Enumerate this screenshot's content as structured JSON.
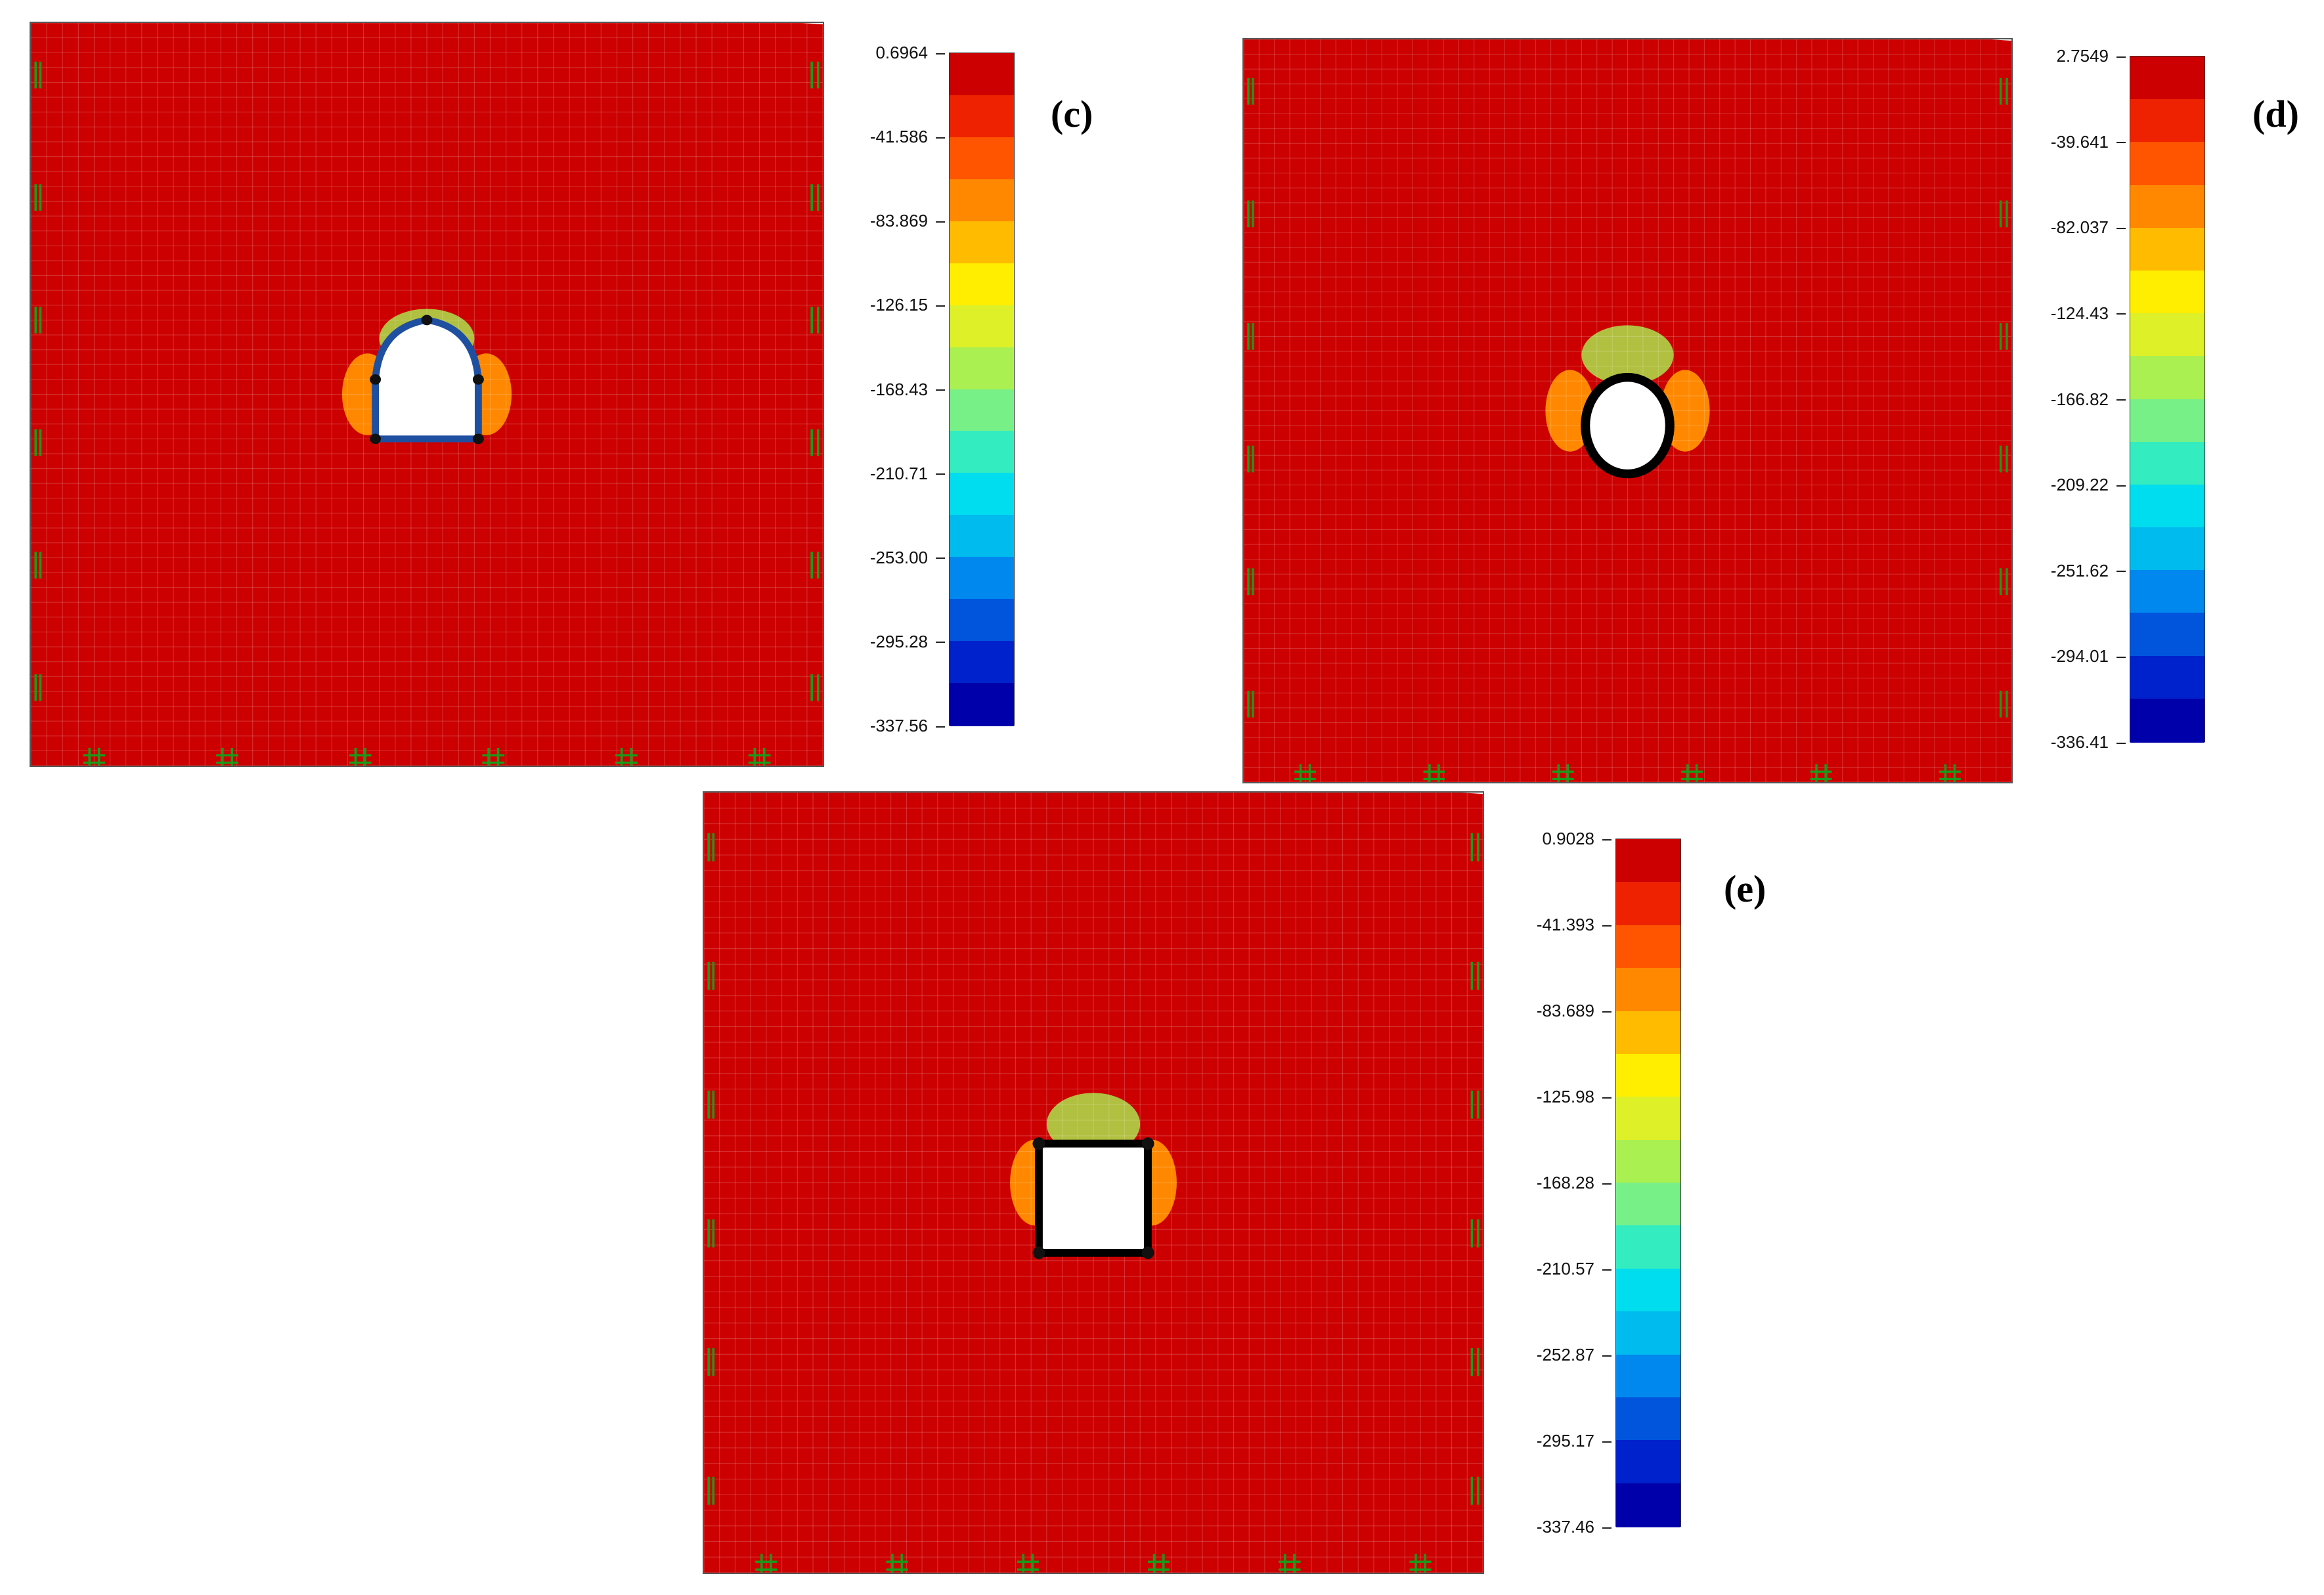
{
  "palette": [
    "#cc0000",
    "#ee2200",
    "#ff5500",
    "#ff8800",
    "#ffbb00",
    "#ffee00",
    "#ddf028",
    "#aaf050",
    "#77f088",
    "#33ecc0",
    "#00ddee",
    "#00bbee",
    "#0088ee",
    "#0055dd",
    "#0022cc",
    "#0000aa"
  ],
  "panels": [
    {
      "id": "c",
      "label": "(c)",
      "opening": "horseshoe",
      "ticks": [
        "0.6964",
        "-41.586",
        "-83.869",
        "-126.15",
        "-168.43",
        "-210.71",
        "-253.00",
        "-295.28",
        "-337.56"
      ]
    },
    {
      "id": "d",
      "label": "(d)",
      "opening": "ellipse",
      "ticks": [
        "2.7549",
        "-39.641",
        "-82.037",
        "-124.43",
        "-166.82",
        "-209.22",
        "-251.62",
        "-294.01",
        "-336.41"
      ]
    },
    {
      "id": "e",
      "label": "(e)",
      "opening": "square",
      "ticks": [
        "0.9028",
        "-41.393",
        "-83.689",
        "-125.98",
        "-168.28",
        "-210.57",
        "-252.87",
        "-295.17",
        "-337.46"
      ]
    }
  ]
}
